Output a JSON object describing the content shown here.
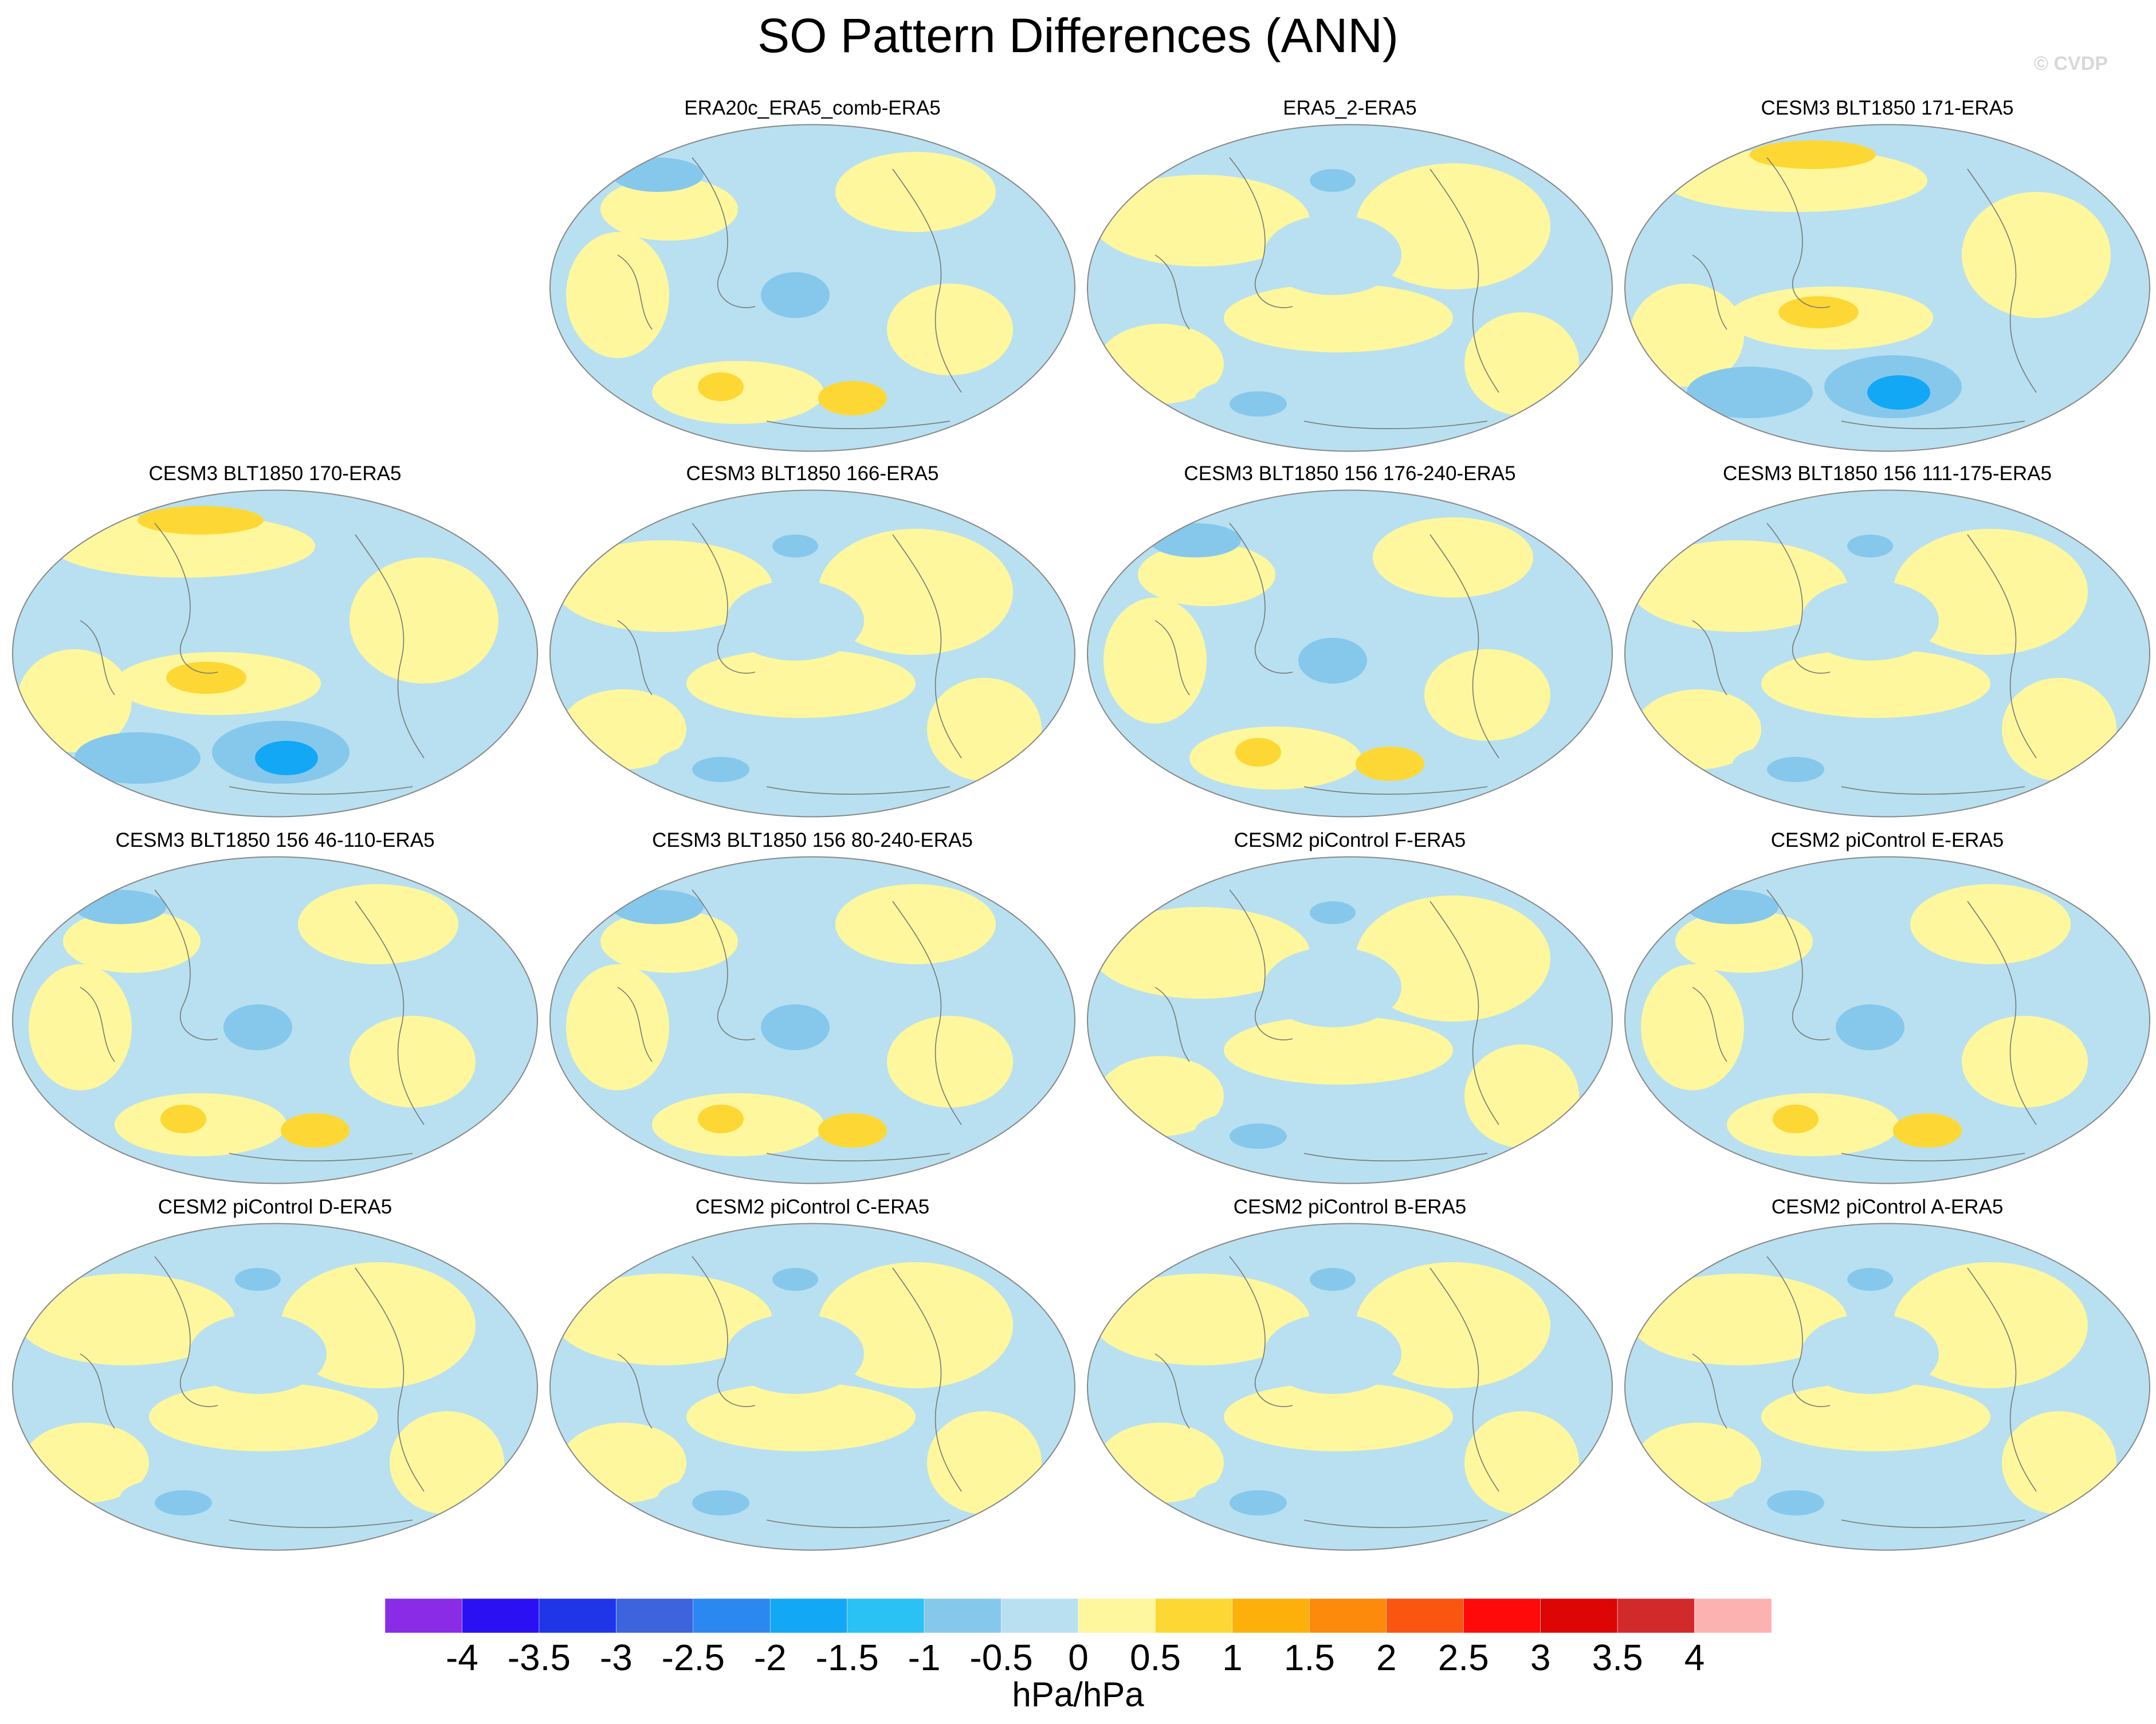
{
  "title": "SO Pattern Differences (ANN)",
  "watermark": "© CVDP",
  "panels": [
    {
      "label": "ERA20c_ERA5_comb-ERA5",
      "palette": "blue"
    },
    {
      "label": "ERA5_2-ERA5",
      "palette": "yellow"
    },
    {
      "label": "CESM3 BLT1850 171-ERA5",
      "palette": "strong"
    },
    {
      "label": "CESM3 BLT1850 170-ERA5",
      "palette": "strong"
    },
    {
      "label": "CESM3 BLT1850 166-ERA5",
      "palette": "yellow"
    },
    {
      "label": "CESM3 BLT1850 156 176-240-ERA5",
      "palette": "blue"
    },
    {
      "label": "CESM3 BLT1850 156 111-175-ERA5",
      "palette": "yellow"
    },
    {
      "label": "CESM3 BLT1850 156 46-110-ERA5",
      "palette": "blue"
    },
    {
      "label": "CESM3 BLT1850 156 80-240-ERA5",
      "palette": "blue"
    },
    {
      "label": "CESM2 piControl F-ERA5",
      "palette": "yellow"
    },
    {
      "label": "CESM2 piControl E-ERA5",
      "palette": "blue"
    },
    {
      "label": "CESM2 piControl D-ERA5",
      "palette": "yellow"
    },
    {
      "label": "CESM2 piControl C-ERA5",
      "palette": "yellow"
    },
    {
      "label": "CESM2 piControl B-ERA5",
      "palette": "yellow"
    },
    {
      "label": "CESM2 piControl A-ERA5",
      "palette": "yellow"
    }
  ],
  "colorbar": {
    "colors": [
      "#8a2be8",
      "#2a10f2",
      "#2035e8",
      "#3d64dd",
      "#2b88f0",
      "#12a8f5",
      "#2ac1f5",
      "#86c8ec",
      "#b8e0f0",
      "#fff79d",
      "#fdd834",
      "#fdaf0a",
      "#fd8a0a",
      "#fb5512",
      "#fe0a0a",
      "#dd0505",
      "#d22a2a",
      "#fdb2b2"
    ],
    "tick_labels": [
      "-4",
      "-3.5",
      "-3",
      "-2.5",
      "-2",
      "-1.5",
      "-1",
      "-0.5",
      "0",
      "0.5",
      "1",
      "1.5",
      "2",
      "2.5",
      "3",
      "3.5",
      "4"
    ],
    "units": "hPa/hPa"
  }
}
